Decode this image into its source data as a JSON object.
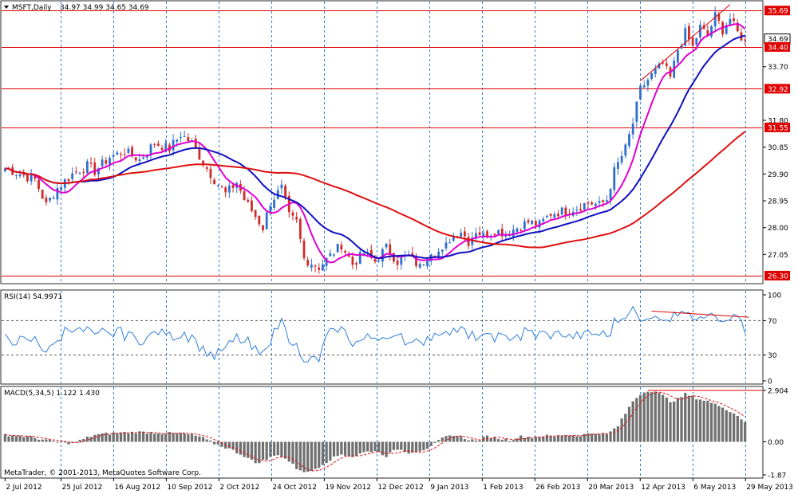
{
  "window": {
    "symbol_label": "MSFT,Daily",
    "ohlc": "34.97 34.99 34.65 34.69",
    "rsi_label": "RSI(14) 54.9971",
    "macd_label": "MACD(5,34,5) 1.122 1.430",
    "copyright": "MetaTrader, © 2001-2013, MetaQuotes Software Corp."
  },
  "colors": {
    "background": "#ffffff",
    "frame": "#2a2a2a",
    "bull_candle": "#2f6fd0",
    "bear_candle": "#d22a2a",
    "ma_fast": "#e000d0",
    "ma_mid": "#1010c0",
    "ma_slow": "#e01010",
    "rsi_line": "#2f7fd8",
    "macd_hist": "#707070",
    "macd_signal": "#e01010",
    "price_line": "#e00000",
    "grid": "#2f7fd8"
  },
  "chart_data": [
    {
      "type": "candlestick",
      "panel": "price",
      "symbol": "MSFT",
      "timeframe": "Daily",
      "x_ticks": [
        "2 Jul 2012",
        "25 Jul 2012",
        "16 Aug 2012",
        "10 Sep 2012",
        "2 Oct 2012",
        "24 Oct 2012",
        "19 Nov 2012",
        "12 Dec 2012",
        "9 Jan 2013",
        "1 Feb 2013",
        "26 Feb 2013",
        "20 Mar 2013",
        "12 Apr 2013",
        "6 May 2013",
        "29 May 2013"
      ],
      "y_ticks": [
        "35.69",
        "34.69",
        "34.40",
        "33.70",
        "32.92",
        "31.80",
        "31.55",
        "30.85",
        "29.90",
        "28.95",
        "28.00",
        "27.05",
        "26.30"
      ],
      "ylim": [
        26.1,
        35.95
      ],
      "close_path": [
        [
          0,
          30.1
        ],
        [
          4,
          29.9
        ],
        [
          8,
          29.7
        ],
        [
          11,
          28.8
        ],
        [
          14,
          29.4
        ],
        [
          18,
          29.9
        ],
        [
          22,
          30.2
        ],
        [
          24,
          30.0
        ],
        [
          28,
          30.5
        ],
        [
          32,
          30.7
        ],
        [
          36,
          30.4
        ],
        [
          40,
          31.0
        ],
        [
          44,
          30.8
        ],
        [
          47,
          31.3
        ],
        [
          50,
          31.0
        ],
        [
          53,
          30.3
        ],
        [
          56,
          29.7
        ],
        [
          59,
          29.2
        ],
        [
          62,
          29.6
        ],
        [
          64,
          29.0
        ],
        [
          67,
          28.4
        ],
        [
          69,
          28.0
        ],
        [
          71,
          28.9
        ],
        [
          74,
          29.4
        ],
        [
          76,
          28.4
        ],
        [
          78,
          28.2
        ],
        [
          80,
          26.9
        ],
        [
          84,
          26.6
        ],
        [
          87,
          27.0
        ],
        [
          90,
          27.4
        ],
        [
          93,
          26.7
        ],
        [
          96,
          27.1
        ],
        [
          99,
          26.8
        ],
        [
          102,
          27.3
        ],
        [
          105,
          26.8
        ],
        [
          108,
          27.0
        ],
        [
          111,
          26.6
        ],
        [
          114,
          27.2
        ],
        [
          117,
          27.1
        ],
        [
          119,
          27.6
        ],
        [
          122,
          27.9
        ],
        [
          124,
          27.5
        ],
        [
          126,
          27.9
        ],
        [
          128,
          27.7
        ],
        [
          131,
          27.9
        ],
        [
          134,
          27.8
        ],
        [
          137,
          28.0
        ],
        [
          140,
          28.2
        ],
        [
          143,
          28.1
        ],
        [
          146,
          28.5
        ],
        [
          150,
          28.6
        ],
        [
          153,
          28.7
        ],
        [
          156,
          28.9
        ],
        [
          159,
          28.8
        ],
        [
          161,
          29.0
        ],
        [
          163,
          30.0
        ],
        [
          166,
          30.8
        ],
        [
          168,
          31.7
        ],
        [
          170,
          32.9
        ],
        [
          173,
          33.4
        ],
        [
          176,
          33.8
        ],
        [
          178,
          33.3
        ],
        [
          180,
          34.3
        ],
        [
          182,
          34.9
        ],
        [
          184,
          34.4
        ],
        [
          186,
          35.1
        ],
        [
          188,
          34.8
        ],
        [
          190,
          35.5
        ],
        [
          192,
          35.0
        ],
        [
          194,
          35.4
        ],
        [
          196,
          34.9
        ],
        [
          198,
          34.6
        ]
      ],
      "n_bars": 199,
      "series": [
        {
          "name": "",
          "style": "magenta line"
        },
        {
          "name": "",
          "style": "blue line"
        },
        {
          "name": "",
          "style": "red line"
        }
      ],
      "horizontal_levels": [
        35.69,
        34.4,
        32.92,
        31.55,
        26.3
      ],
      "trendlines": [
        {
          "from": [
            170,
            33.2
          ],
          "to": [
            194,
            35.9
          ]
        }
      ]
    },
    {
      "type": "line",
      "panel": "rsi",
      "name": "RSI(14)",
      "last": 54.9971,
      "ylim": [
        0,
        100
      ],
      "y_ticks": [
        100,
        70,
        30,
        0
      ],
      "levels": [
        70,
        30
      ],
      "trendline": {
        "from": [
          173,
          81
        ],
        "to": [
          199,
          74
        ]
      }
    },
    {
      "type": "bar",
      "panel": "macd",
      "name": "MACD(5,34,5)",
      "values_last": [
        1.122,
        1.43
      ],
      "ylim": [
        -1.87,
        2.904
      ],
      "y_ticks": [
        "2.904",
        "0.00",
        "-1.87"
      ],
      "hist_path": [
        [
          0,
          0.4
        ],
        [
          6,
          0.3
        ],
        [
          12,
          0.05
        ],
        [
          18,
          -0.1
        ],
        [
          24,
          0.4
        ],
        [
          30,
          0.5
        ],
        [
          36,
          0.55
        ],
        [
          42,
          0.5
        ],
        [
          48,
          0.45
        ],
        [
          52,
          0.3
        ],
        [
          56,
          -0.1
        ],
        [
          60,
          -0.4
        ],
        [
          64,
          -0.8
        ],
        [
          67,
          -1.2
        ],
        [
          70,
          -1.0
        ],
        [
          73,
          -0.7
        ],
        [
          76,
          -1.1
        ],
        [
          78,
          -1.5
        ],
        [
          81,
          -1.75
        ],
        [
          84,
          -1.4
        ],
        [
          87,
          -1.0
        ],
        [
          90,
          -0.7
        ],
        [
          93,
          -0.85
        ],
        [
          96,
          -0.6
        ],
        [
          99,
          -0.5
        ],
        [
          102,
          -0.8
        ],
        [
          105,
          -0.4
        ],
        [
          108,
          -0.6
        ],
        [
          111,
          -0.5
        ],
        [
          114,
          -0.3
        ],
        [
          117,
          0.2
        ],
        [
          120,
          0.4
        ],
        [
          123,
          0.2
        ],
        [
          126,
          0.05
        ],
        [
          129,
          0.3
        ],
        [
          132,
          0.2
        ],
        [
          135,
          0.1
        ],
        [
          138,
          0.3
        ],
        [
          141,
          0.25
        ],
        [
          144,
          0.35
        ],
        [
          147,
          0.3
        ],
        [
          150,
          0.4
        ],
        [
          153,
          0.35
        ],
        [
          156,
          0.45
        ],
        [
          159,
          0.5
        ],
        [
          161,
          0.4
        ],
        [
          164,
          0.9
        ],
        [
          166,
          1.6
        ],
        [
          168,
          2.3
        ],
        [
          170,
          2.7
        ],
        [
          172,
          2.9
        ],
        [
          174,
          2.85
        ],
        [
          176,
          2.6
        ],
        [
          178,
          2.3
        ],
        [
          180,
          2.4
        ],
        [
          182,
          2.7
        ],
        [
          184,
          2.55
        ],
        [
          186,
          2.4
        ],
        [
          188,
          2.3
        ],
        [
          190,
          2.1
        ],
        [
          192,
          2.0
        ],
        [
          194,
          1.7
        ],
        [
          196,
          1.5
        ],
        [
          198,
          1.1
        ]
      ],
      "signal_level_line": 2.904
    }
  ]
}
